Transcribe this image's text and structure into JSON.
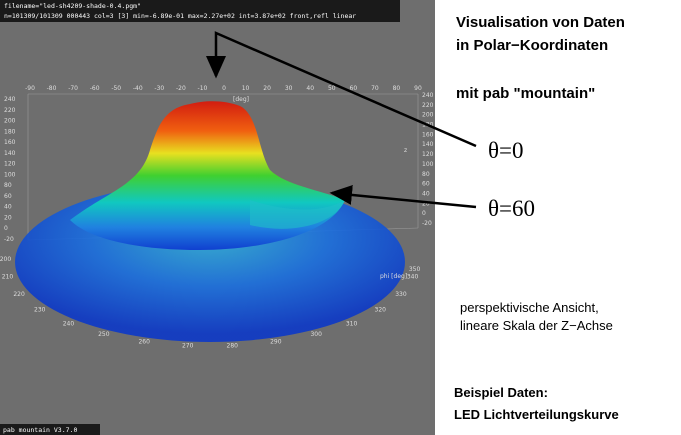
{
  "header": {
    "filename": "filename=\"led-sh4209-shade-0.4.pgm\"",
    "stats": "n=101309/101309 000443 col=3 [3] min=-6.89e-01 max=2.27e+02 int=3.87e+02 front,refl linear"
  },
  "footer": "pab mountain V3.7.0",
  "plot": {
    "theta_ticks": [
      -90,
      -80,
      -70,
      -60,
      -50,
      -40,
      -30,
      -20,
      -10,
      0,
      10,
      20,
      30,
      40,
      50,
      60,
      70,
      80,
      90
    ],
    "theta_unit": "[deg]",
    "z_ticks": [
      240,
      220,
      200,
      180,
      160,
      140,
      120,
      100,
      80,
      60,
      40,
      20,
      0,
      -20
    ],
    "z_label": "z",
    "phi_ticks": [
      200,
      210,
      220,
      230,
      240,
      250,
      260,
      270,
      280,
      290,
      300,
      310,
      320,
      330,
      340,
      350
    ],
    "phi_label": "phi [deg]"
  },
  "slide": {
    "title": [
      "Visualisation von Daten",
      "in Polar−Koordinaten"
    ],
    "subtitle": "mit pab \"mountain\"",
    "annotations": [
      "θ=0",
      "θ=60"
    ],
    "description": [
      "perspektivische Ansicht,",
      "lineare Skala der Z−Achse"
    ],
    "example_heading": "Beispiel Daten:",
    "example_name": "LED Lichtverteilungskurve"
  }
}
